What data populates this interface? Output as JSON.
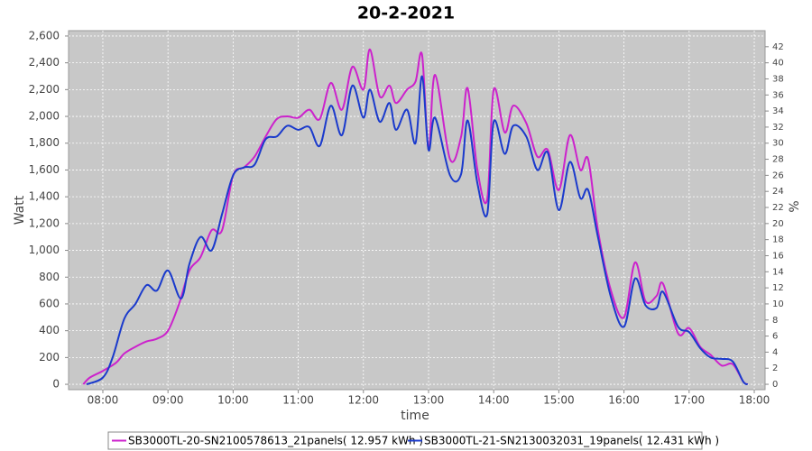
{
  "chart_data": {
    "type": "line",
    "title": "20-2-2021",
    "x_label": "time",
    "y_label": "Watt",
    "y2_label": "%",
    "xlim": [
      7.474,
      18.166
    ],
    "xticks": [
      {
        "value": 8,
        "label": "08:00"
      },
      {
        "value": 9,
        "label": "09:00"
      },
      {
        "value": 10,
        "label": "10:00"
      },
      {
        "value": 11,
        "label": "11:00"
      },
      {
        "value": 12,
        "label": "12:00"
      },
      {
        "value": 13,
        "label": "13:00"
      },
      {
        "value": 14,
        "label": "14:00"
      },
      {
        "value": 15,
        "label": "15:00"
      },
      {
        "value": 16,
        "label": "16:00"
      },
      {
        "value": 17,
        "label": "17:00"
      },
      {
        "value": 18,
        "label": "18:00"
      }
    ],
    "ylim": [
      -40,
      2640
    ],
    "yticks": [
      0,
      200,
      400,
      600,
      800,
      {
        "value": 1000,
        "label": "1,000"
      },
      {
        "value": 1200,
        "label": "1,200"
      },
      {
        "value": 1400,
        "label": "1,400"
      },
      {
        "value": 1600,
        "label": "1,600"
      },
      {
        "value": 1800,
        "label": "1,800"
      },
      {
        "value": 2000,
        "label": "2,000"
      },
      {
        "value": 2200,
        "label": "2,200"
      },
      {
        "value": 2400,
        "label": "2,400"
      },
      {
        "value": 2600,
        "label": "2,600"
      }
    ],
    "y2lim": [
      -0.67,
      44.0
    ],
    "y2ticks": [
      0,
      2,
      4,
      6,
      8,
      10,
      12,
      14,
      16,
      18,
      20,
      22,
      24,
      26,
      28,
      30,
      32,
      34,
      36,
      38,
      40,
      42
    ],
    "grid": true,
    "legend": "bottom",
    "series": [
      {
        "name": "SB3000TL-20-SN2100578613_21panels( 12.957 kWh )",
        "color": "#cc22cc",
        "x": [
          7.7,
          7.8,
          8.0,
          8.2,
          8.33,
          8.5,
          8.67,
          8.83,
          9.0,
          9.17,
          9.33,
          9.5,
          9.67,
          9.83,
          10.0,
          10.17,
          10.33,
          10.5,
          10.67,
          10.83,
          11.0,
          11.17,
          11.33,
          11.5,
          11.67,
          11.83,
          12.0,
          12.1,
          12.25,
          12.4,
          12.5,
          12.67,
          12.8,
          12.9,
          13.0,
          13.1,
          13.33,
          13.5,
          13.6,
          13.75,
          13.9,
          14.0,
          14.17,
          14.3,
          14.5,
          14.67,
          14.83,
          15.0,
          15.17,
          15.33,
          15.45,
          15.6,
          15.8,
          16.0,
          16.17,
          16.33,
          16.5,
          16.6,
          16.83,
          17.0,
          17.17,
          17.33,
          17.5,
          17.67,
          17.83,
          17.9
        ],
        "values": [
          0,
          50,
          100,
          160,
          230,
          280,
          320,
          340,
          400,
          600,
          850,
          950,
          1150,
          1150,
          1560,
          1620,
          1700,
          1850,
          1980,
          2000,
          1990,
          2050,
          1980,
          2250,
          2050,
          2370,
          2200,
          2500,
          2150,
          2230,
          2100,
          2200,
          2260,
          2460,
          1750,
          2310,
          1680,
          1850,
          2210,
          1600,
          1380,
          2200,
          1880,
          2080,
          1950,
          1700,
          1750,
          1450,
          1860,
          1600,
          1680,
          1150,
          700,
          500,
          910,
          620,
          660,
          750,
          380,
          420,
          280,
          220,
          140,
          150,
          20,
          0
        ]
      },
      {
        "name": "SB3000TL-21-SN2130032031_19panels( 12.431 kWh )",
        "color": "#1a3acc",
        "x": [
          7.75,
          8.0,
          8.15,
          8.33,
          8.5,
          8.67,
          8.83,
          9.0,
          9.2,
          9.33,
          9.5,
          9.67,
          9.83,
          10.0,
          10.17,
          10.33,
          10.5,
          10.67,
          10.83,
          11.0,
          11.17,
          11.33,
          11.5,
          11.67,
          11.83,
          12.0,
          12.1,
          12.25,
          12.4,
          12.5,
          12.67,
          12.8,
          12.9,
          13.0,
          13.1,
          13.33,
          13.5,
          13.6,
          13.75,
          13.9,
          14.0,
          14.17,
          14.3,
          14.5,
          14.67,
          14.83,
          15.0,
          15.17,
          15.33,
          15.45,
          15.6,
          15.8,
          16.0,
          16.17,
          16.33,
          16.5,
          16.6,
          16.83,
          17.0,
          17.17,
          17.33,
          17.5,
          17.67,
          17.83,
          17.9
        ],
        "values": [
          0,
          50,
          200,
          490,
          600,
          740,
          700,
          850,
          640,
          900,
          1100,
          1000,
          1270,
          1560,
          1620,
          1640,
          1830,
          1850,
          1930,
          1900,
          1920,
          1780,
          2080,
          1860,
          2230,
          1990,
          2200,
          1960,
          2100,
          1900,
          2050,
          1800,
          2300,
          1750,
          1990,
          1560,
          1570,
          1970,
          1500,
          1270,
          1960,
          1720,
          1930,
          1850,
          1600,
          1730,
          1300,
          1660,
          1390,
          1450,
          1100,
          650,
          430,
          790,
          590,
          570,
          690,
          430,
          390,
          270,
          200,
          190,
          170,
          20,
          0
        ]
      }
    ]
  }
}
